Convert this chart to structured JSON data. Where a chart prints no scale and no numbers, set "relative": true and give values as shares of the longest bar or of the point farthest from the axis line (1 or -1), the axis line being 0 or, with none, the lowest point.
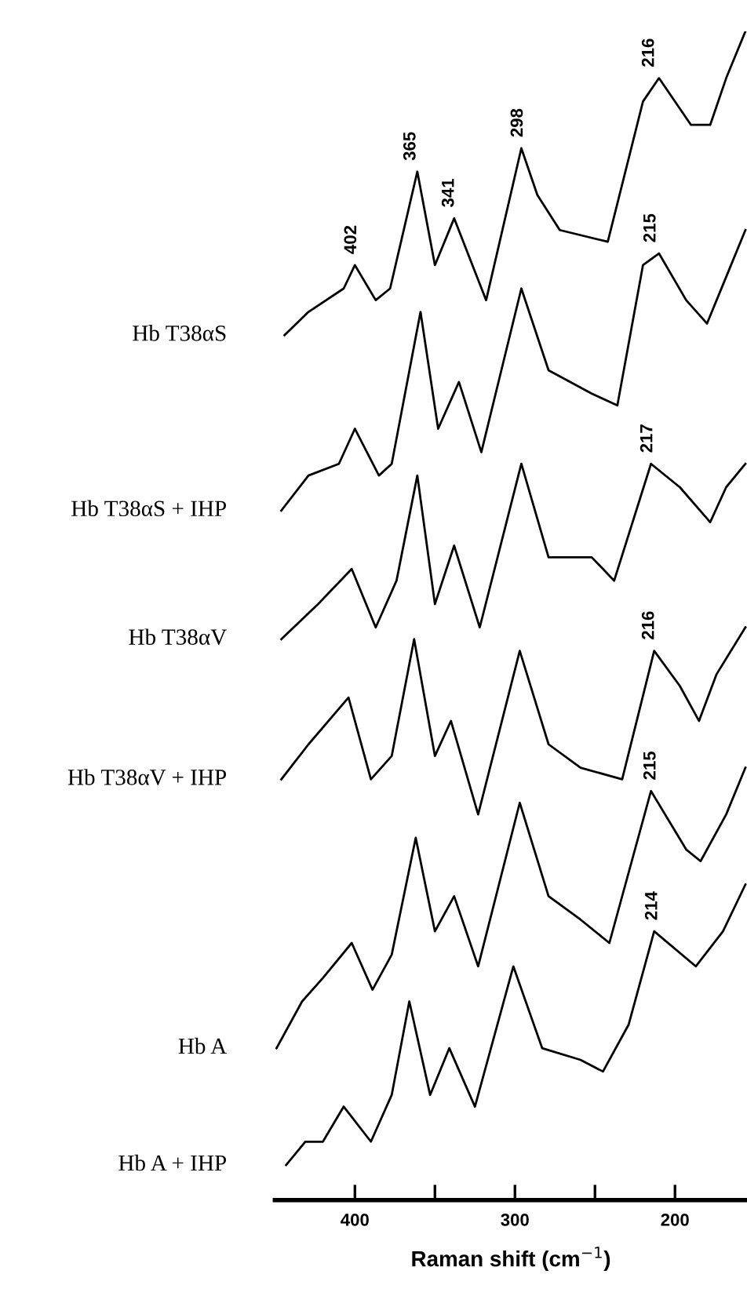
{
  "chart_data": {
    "type": "line",
    "relative": true,
    "xlabel": "Raman shift (cm$^{−1}$)",
    "xlim": [
      450,
      155
    ],
    "xticks": [
      400,
      {
        "value": 350,
        "label": null
      },
      300,
      {
        "value": 250,
        "label": null
      },
      200
    ],
    "tick_labels": "x",
    "grid": false,
    "legend": false,
    "marker": "none",
    "line_style": "solid",
    "series": [
      {
        "name": "Hb T38αS",
        "color": "#000000",
        "x": [
          444,
          429,
          407,
          400,
          387,
          378,
          361,
          350,
          338,
          318,
          296,
          286,
          272,
          242,
          220,
          210,
          190,
          178,
          168,
          156
        ],
        "values": [
          0.74,
          0.76,
          0.78,
          0.8,
          0.77,
          0.78,
          0.88,
          0.8,
          0.84,
          0.77,
          0.9,
          0.86,
          0.83,
          0.82,
          0.94,
          0.96,
          0.92,
          0.92,
          0.96,
          1.0
        ]
      },
      {
        "name": "Hb T38αS + IHP",
        "color": "#000000",
        "x": [
          446,
          429,
          410,
          400,
          385,
          377,
          359,
          348,
          335,
          321,
          296,
          279,
          252,
          236,
          220,
          210,
          193,
          180,
          168,
          156
        ],
        "values": [
          0.59,
          0.62,
          0.63,
          0.66,
          0.62,
          0.63,
          0.76,
          0.66,
          0.7,
          0.64,
          0.78,
          0.71,
          0.69,
          0.68,
          0.8,
          0.81,
          0.77,
          0.75,
          0.79,
          0.83
        ]
      },
      {
        "name": "Hb T38αV",
        "color": "#000000",
        "x": [
          446,
          423,
          402,
          387,
          374,
          361,
          350,
          338,
          322,
          296,
          279,
          252,
          238,
          215,
          197,
          178,
          168,
          156
        ],
        "values": [
          0.48,
          0.51,
          0.54,
          0.49,
          0.53,
          0.62,
          0.51,
          0.56,
          0.49,
          0.63,
          0.55,
          0.55,
          0.53,
          0.63,
          0.61,
          0.58,
          0.61,
          0.63
        ]
      },
      {
        "name": "Hb T38αV + IHP",
        "color": "#000000",
        "x": [
          446,
          429,
          404,
          390,
          377,
          363,
          350,
          340,
          323,
          297,
          279,
          259,
          233,
          213,
          197,
          185,
          174,
          156
        ],
        "values": [
          0.36,
          0.39,
          0.43,
          0.36,
          0.38,
          0.48,
          0.38,
          0.41,
          0.33,
          0.47,
          0.39,
          0.37,
          0.36,
          0.47,
          0.44,
          0.41,
          0.45,
          0.49
        ]
      },
      {
        "name": "Hb A",
        "color": "#000000",
        "x": [
          449,
          433,
          420,
          402,
          389,
          377,
          362,
          350,
          338,
          323,
          297,
          279,
          259,
          241,
          215,
          193,
          184,
          168,
          156
        ],
        "values": [
          0.13,
          0.17,
          0.19,
          0.22,
          0.18,
          0.21,
          0.31,
          0.23,
          0.26,
          0.2,
          0.34,
          0.26,
          0.24,
          0.22,
          0.35,
          0.3,
          0.29,
          0.33,
          0.37
        ]
      },
      {
        "name": "Hb A + IHP",
        "color": "#000000",
        "x": [
          443,
          431,
          420,
          407,
          390,
          377,
          366,
          353,
          341,
          325,
          301,
          283,
          259,
          245,
          229,
          213,
          187,
          170,
          156
        ],
        "values": [
          0.03,
          0.05,
          0.05,
          0.08,
          0.05,
          0.09,
          0.17,
          0.09,
          0.13,
          0.08,
          0.2,
          0.13,
          0.12,
          0.11,
          0.15,
          0.23,
          0.2,
          0.23,
          0.27
        ]
      }
    ],
    "annotations": [
      {
        "text": "216",
        "x": 216,
        "y": 0.96
      },
      {
        "text": "365",
        "x": 365,
        "y": 0.88
      },
      {
        "text": "341",
        "x": 341,
        "y": 0.84
      },
      {
        "text": "298",
        "x": 298,
        "y": 0.9
      },
      {
        "text": "402",
        "x": 402,
        "y": 0.8
      },
      {
        "text": "215",
        "x": 215,
        "y": 0.81
      },
      {
        "text": "217",
        "x": 217,
        "y": 0.63
      },
      {
        "text": "216",
        "x": 216,
        "y": 0.47
      },
      {
        "text": "215",
        "x": 215,
        "y": 0.35
      },
      {
        "text": "214",
        "x": 214,
        "y": 0.23
      }
    ]
  }
}
